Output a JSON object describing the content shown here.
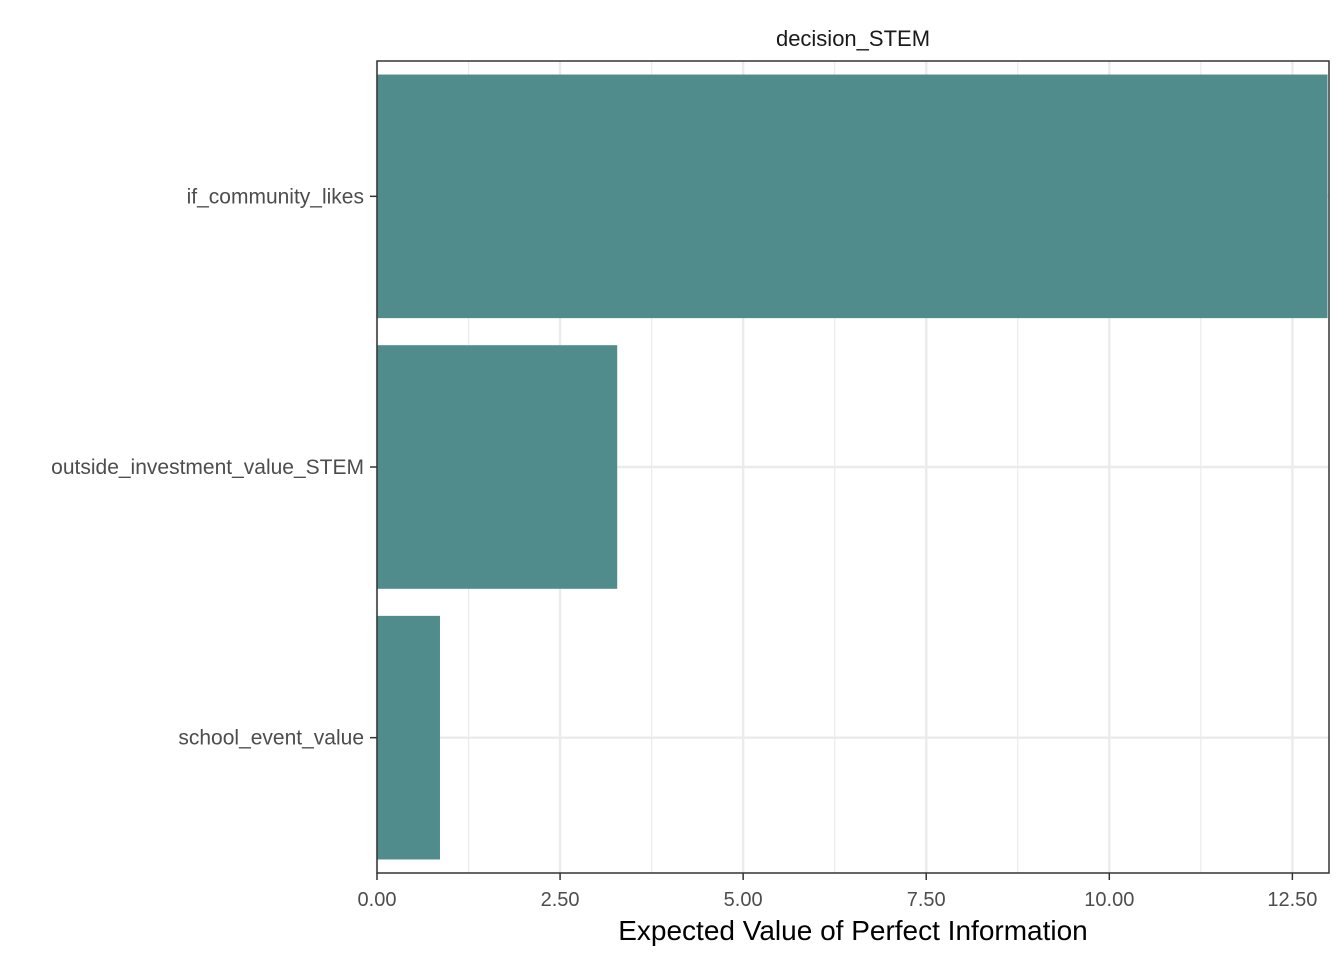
{
  "chart_data": {
    "type": "bar",
    "orientation": "horizontal",
    "facet_title": "decision_STEM",
    "categories": [
      "if_community_likes",
      "outside_investment_value_STEM",
      "school_event_value"
    ],
    "values": [
      12.98,
      3.28,
      0.86
    ],
    "xlabel": "Expected Value of Perfect Information",
    "ylabel": "",
    "xlim": [
      0,
      13.0
    ],
    "x_ticks": [
      0,
      2.5,
      5,
      7.5,
      10,
      12.5
    ],
    "x_tick_labels": [
      "0.00",
      "2.50",
      "5.00",
      "7.50",
      "10.00",
      "12.50"
    ],
    "grid": true,
    "legend": "none",
    "colors": {
      "bar": "#508C8C",
      "grid_major": "#EBEBEB",
      "panel_border": "#333333",
      "tick": "#333333"
    }
  }
}
